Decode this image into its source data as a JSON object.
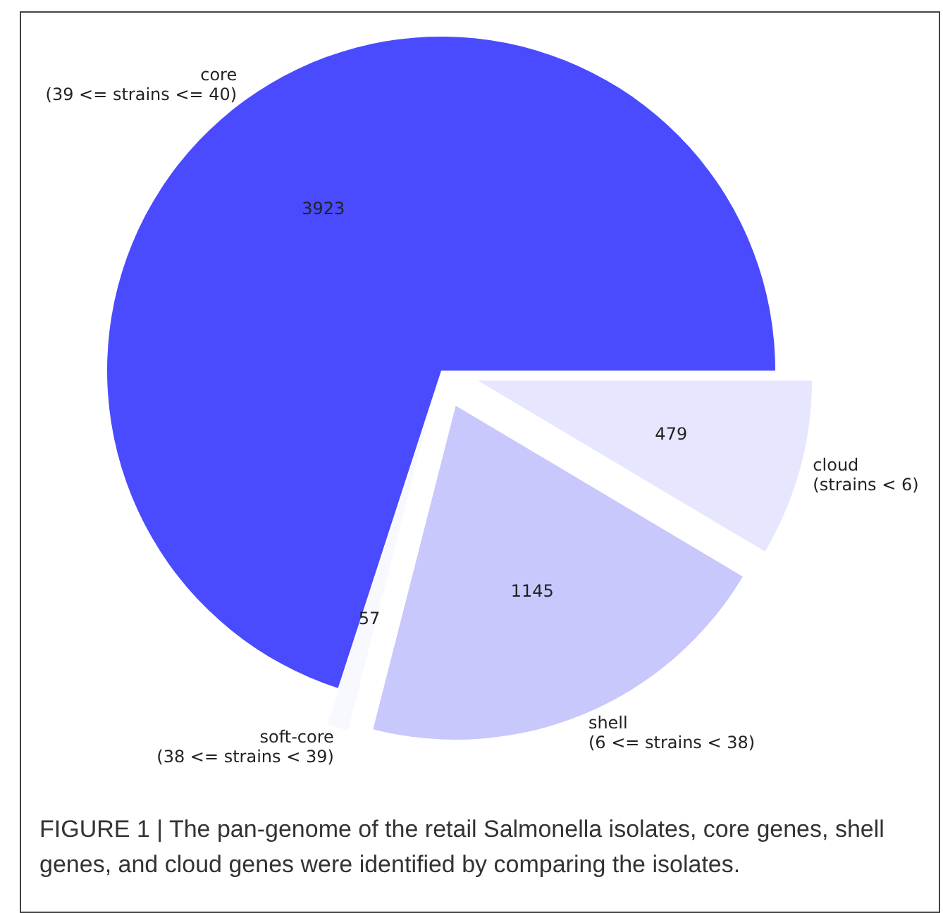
{
  "chart_data": {
    "type": "pie",
    "categories": [
      "core\n(39 <= strains <= 40)",
      "soft-core\n(38 <= strains < 39)",
      "shell\n(6 <= strains < 38)",
      "cloud\n(strains < 6)"
    ],
    "values": [
      3923,
      57,
      1145,
      479
    ],
    "colors": [
      "#4a4aff",
      "#f8f8ff",
      "#c8c8fc",
      "#e6e6ff"
    ],
    "data_labels": true,
    "annotations": [
      "FIGURE 1 | The pan-genome of the retail Salmonella isolates, core genes, shell genes, and cloud genes were identified by comparing the isolates."
    ]
  }
}
